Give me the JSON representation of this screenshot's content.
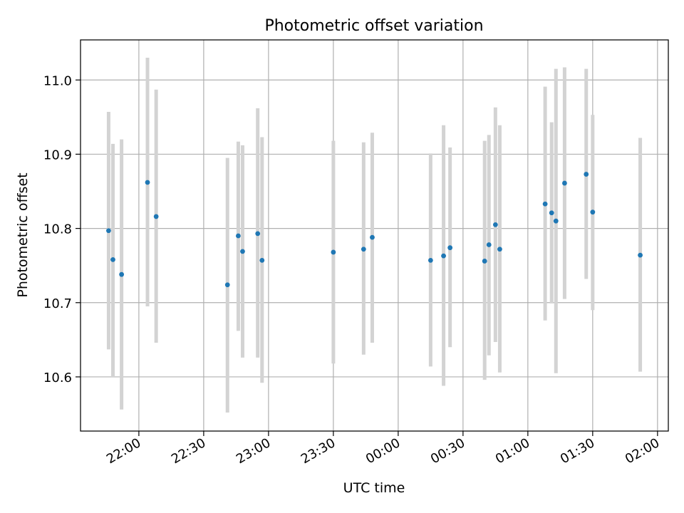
{
  "chart_data": {
    "type": "scatter",
    "title": "Photometric offset variation",
    "xlabel": "UTC time",
    "ylabel": "Photometric offset",
    "x_ticks": [
      "22:00",
      "22:30",
      "23:00",
      "23:30",
      "00:00",
      "00:30",
      "01:00",
      "01:30",
      "02:00"
    ],
    "y_ticks": [
      10.6,
      10.7,
      10.8,
      10.9,
      11.0
    ],
    "y_tick_labels": [
      "10.6",
      "10.7",
      "10.8",
      "10.9",
      "11.0"
    ],
    "xlim": [
      "21:33",
      "02:05"
    ],
    "ylim": [
      10.527,
      11.054
    ],
    "grid": true,
    "colors": {
      "marker": "#1f77b4",
      "errorbar": "#d3d3d3",
      "grid": "#b0b0b0"
    },
    "points": [
      {
        "x": "21:46",
        "y": 10.797,
        "ylo": 10.637,
        "yhi": 10.957
      },
      {
        "x": "21:48",
        "y": 10.758,
        "ylo": 10.6,
        "yhi": 10.914
      },
      {
        "x": "21:52",
        "y": 10.738,
        "ylo": 10.556,
        "yhi": 10.92
      },
      {
        "x": "22:04",
        "y": 10.862,
        "ylo": 10.695,
        "yhi": 11.03
      },
      {
        "x": "22:08",
        "y": 10.816,
        "ylo": 10.646,
        "yhi": 10.987
      },
      {
        "x": "22:41",
        "y": 10.724,
        "ylo": 10.552,
        "yhi": 10.895
      },
      {
        "x": "22:46",
        "y": 10.79,
        "ylo": 10.662,
        "yhi": 10.917
      },
      {
        "x": "22:48",
        "y": 10.769,
        "ylo": 10.626,
        "yhi": 10.912
      },
      {
        "x": "22:55",
        "y": 10.793,
        "ylo": 10.626,
        "yhi": 10.962
      },
      {
        "x": "22:57",
        "y": 10.757,
        "ylo": 10.592,
        "yhi": 10.923
      },
      {
        "x": "23:30",
        "y": 10.768,
        "ylo": 10.618,
        "yhi": 10.918
      },
      {
        "x": "23:44",
        "y": 10.772,
        "ylo": 10.63,
        "yhi": 10.916
      },
      {
        "x": "23:48",
        "y": 10.788,
        "ylo": 10.646,
        "yhi": 10.929
      },
      {
        "x": "00:15",
        "y": 10.757,
        "ylo": 10.614,
        "yhi": 10.901
      },
      {
        "x": "00:21",
        "y": 10.763,
        "ylo": 10.588,
        "yhi": 10.939
      },
      {
        "x": "00:24",
        "y": 10.774,
        "ylo": 10.64,
        "yhi": 10.909
      },
      {
        "x": "00:40",
        "y": 10.756,
        "ylo": 10.596,
        "yhi": 10.918
      },
      {
        "x": "00:42",
        "y": 10.778,
        "ylo": 10.629,
        "yhi": 10.926
      },
      {
        "x": "00:45",
        "y": 10.805,
        "ylo": 10.647,
        "yhi": 10.963
      },
      {
        "x": "00:47",
        "y": 10.772,
        "ylo": 10.606,
        "yhi": 10.939
      },
      {
        "x": "01:08",
        "y": 10.833,
        "ylo": 10.676,
        "yhi": 10.991
      },
      {
        "x": "01:11",
        "y": 10.821,
        "ylo": 10.699,
        "yhi": 10.943
      },
      {
        "x": "01:13",
        "y": 10.81,
        "ylo": 10.605,
        "yhi": 11.015
      },
      {
        "x": "01:17",
        "y": 10.861,
        "ylo": 10.705,
        "yhi": 11.017
      },
      {
        "x": "01:27",
        "y": 10.873,
        "ylo": 10.732,
        "yhi": 11.015
      },
      {
        "x": "01:30",
        "y": 10.822,
        "ylo": 10.69,
        "yhi": 10.953
      },
      {
        "x": "01:52",
        "y": 10.764,
        "ylo": 10.607,
        "yhi": 10.922
      }
    ]
  }
}
